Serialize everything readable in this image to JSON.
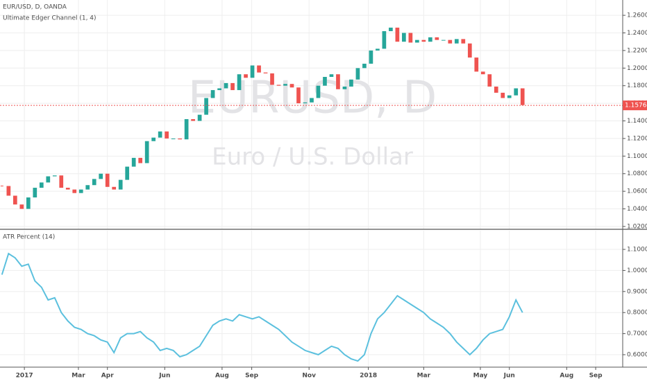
{
  "chart_data": [
    {
      "type": "candlestick",
      "title": "EUR/USD, D, OANDA",
      "subtitle": "Ultimate Edger Channel (1, 4)",
      "watermark": "EURUSD, D",
      "watermark_subtitle": "Euro / U.S. Dollar",
      "up_color": "#26a69a",
      "down_color": "#ef5350",
      "values": [
        1.066,
        1.055,
        1.045,
        1.04,
        1.053,
        1.064,
        1.07,
        1.077,
        1.078,
        1.064,
        1.062,
        1.058,
        1.062,
        1.067,
        1.074,
        1.08,
        1.065,
        1.062,
        1.073,
        1.088,
        1.098,
        1.092,
        1.117,
        1.121,
        1.128,
        1.12,
        1.12,
        1.119,
        1.142,
        1.14,
        1.147,
        1.166,
        1.175,
        1.177,
        1.183,
        1.175,
        1.193,
        1.189,
        1.203,
        1.195,
        1.194,
        1.181,
        1.18,
        1.182,
        1.178,
        1.16,
        1.161,
        1.166,
        1.18,
        1.19,
        1.193,
        1.176,
        1.179,
        1.187,
        1.2,
        1.205,
        1.22,
        1.222,
        1.242,
        1.246,
        1.23,
        1.24,
        1.229,
        1.232,
        1.23,
        1.235,
        1.232,
        1.232,
        1.228,
        1.233,
        1.228,
        1.212,
        1.196,
        1.193,
        1.179,
        1.172,
        1.166,
        1.169,
        1.177,
        1.158
      ],
      "last_price": 1.15762,
      "last_price_color": "#ef5350",
      "ylim": [
        1.0168,
        1.2774
      ],
      "yticks": [
        {
          "value": 1.02,
          "label": "1.02000"
        },
        {
          "value": 1.04,
          "label": "1.04000"
        },
        {
          "value": 1.06,
          "label": "1.06000"
        },
        {
          "value": 1.08,
          "label": "1.08000"
        },
        {
          "value": 1.1,
          "label": "1.10000"
        },
        {
          "value": 1.12,
          "label": "1.12000"
        },
        {
          "value": 1.14,
          "label": "1.14000"
        },
        {
          "value": 1.16,
          "label": "1.16000"
        },
        {
          "value": 1.18,
          "label": "1.18000"
        },
        {
          "value": 1.2,
          "label": "1.20000"
        },
        {
          "value": 1.22,
          "label": "1.22000"
        },
        {
          "value": 1.24,
          "label": "1.24000"
        },
        {
          "value": 1.26,
          "label": "1.26000"
        }
      ],
      "grid": true
    },
    {
      "type": "line",
      "title": "ATR Percent (14)",
      "color": "#5bc0de",
      "values": [
        0.98,
        1.08,
        1.06,
        1.02,
        1.03,
        0.95,
        0.92,
        0.86,
        0.87,
        0.8,
        0.76,
        0.73,
        0.72,
        0.7,
        0.69,
        0.67,
        0.66,
        0.61,
        0.68,
        0.7,
        0.7,
        0.71,
        0.68,
        0.66,
        0.62,
        0.63,
        0.62,
        0.59,
        0.6,
        0.62,
        0.64,
        0.69,
        0.74,
        0.76,
        0.77,
        0.76,
        0.79,
        0.78,
        0.77,
        0.78,
        0.76,
        0.74,
        0.72,
        0.69,
        0.66,
        0.64,
        0.62,
        0.61,
        0.6,
        0.62,
        0.64,
        0.63,
        0.6,
        0.58,
        0.57,
        0.6,
        0.7,
        0.77,
        0.8,
        0.84,
        0.88,
        0.86,
        0.84,
        0.82,
        0.8,
        0.77,
        0.75,
        0.73,
        0.7,
        0.66,
        0.63,
        0.6,
        0.63,
        0.67,
        0.7,
        0.71,
        0.72,
        0.78,
        0.86,
        0.8
      ],
      "ylim": [
        0.5408,
        1.1889
      ],
      "yticks": [
        {
          "value": 0.6,
          "label": "0.6000"
        },
        {
          "value": 0.7,
          "label": "0.7000"
        },
        {
          "value": 0.8,
          "label": "0.8000"
        },
        {
          "value": 0.9,
          "label": "0.9000"
        },
        {
          "value": 1.0,
          "label": "1.0000"
        },
        {
          "value": 1.1,
          "label": "1.1000"
        }
      ],
      "xlim": [
        -0.3,
        94.2
      ],
      "xticks": [
        {
          "value": 3.4,
          "label": "2017"
        },
        {
          "value": 11.6,
          "label": "Mar"
        },
        {
          "value": 16,
          "label": "Apr"
        },
        {
          "value": 24.7,
          "label": "Jun"
        },
        {
          "value": 33.4,
          "label": "Aug"
        },
        {
          "value": 37.9,
          "label": "Sep"
        },
        {
          "value": 46.6,
          "label": "Nov"
        },
        {
          "value": 55.6,
          "label": "2018"
        },
        {
          "value": 64,
          "label": "Mar"
        },
        {
          "value": 72.6,
          "label": "May"
        },
        {
          "value": 77,
          "label": "Jun"
        },
        {
          "value": 85.7,
          "label": "Aug"
        },
        {
          "value": 90.1,
          "label": "Sep"
        }
      ],
      "grid": true
    }
  ]
}
